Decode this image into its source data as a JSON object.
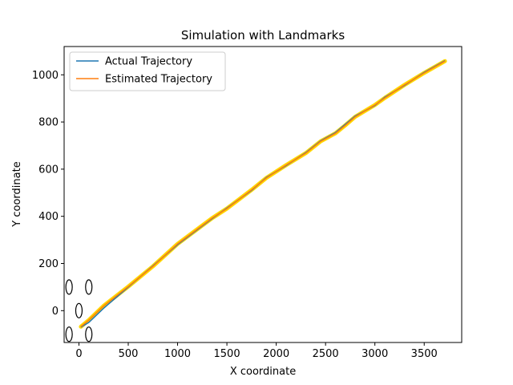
{
  "chart_data": {
    "type": "line",
    "title": "Simulation with Landmarks",
    "xlabel": "X coordinate",
    "ylabel": "Y coordinate",
    "xlim": [
      -150,
      3880
    ],
    "ylim": [
      -135,
      1120
    ],
    "xticks": [
      0,
      500,
      1000,
      1500,
      2000,
      2500,
      3000,
      3500
    ],
    "yticks": [
      0,
      200,
      400,
      600,
      800,
      1000
    ],
    "grid": false,
    "legend": "top-left",
    "series": [
      {
        "name": "Actual Trajectory",
        "color": "#1f77b4",
        "x": [
          20,
          100,
          250,
          500,
          750,
          1000,
          1350,
          1500,
          1750,
          1900,
          2100,
          2300,
          2450,
          2600,
          2700,
          2800,
          3000,
          3100,
          3300,
          3500,
          3710
        ],
        "y": [
          -70,
          -50,
          10,
          100,
          190,
          280,
          390,
          435,
          510,
          565,
          615,
          670,
          720,
          755,
          790,
          825,
          870,
          905,
          955,
          1010,
          1060
        ]
      },
      {
        "name": "Estimated Trajectory",
        "color": "#ff7f0e",
        "x": [
          20,
          100,
          250,
          500,
          750,
          1000,
          1350,
          1500,
          1750,
          1900,
          2100,
          2300,
          2450,
          2600,
          2700,
          2800,
          3000,
          3100,
          3300,
          3500,
          3710
        ],
        "y": [
          -68,
          -40,
          20,
          102,
          188,
          283,
          392,
          433,
          512,
          563,
          617,
          668,
          718,
          752,
          786,
          822,
          872,
          902,
          957,
          1008,
          1058
        ]
      }
    ],
    "uncertainty_band_color": "#ffd700",
    "landmarks": {
      "x": [
        -100,
        100,
        0,
        -100,
        100
      ],
      "y": [
        100,
        100,
        0,
        -100,
        -100
      ],
      "shape": "ellipse"
    }
  }
}
